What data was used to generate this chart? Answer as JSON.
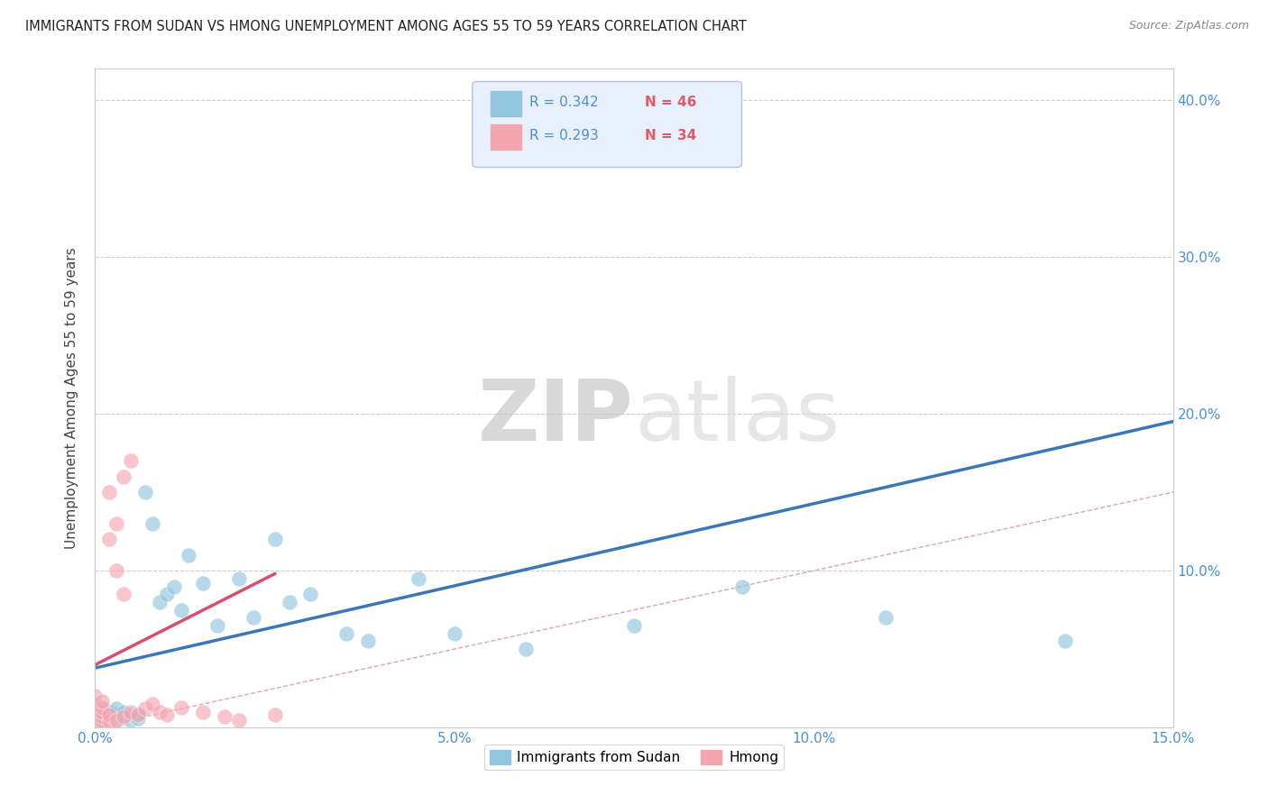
{
  "title": "IMMIGRANTS FROM SUDAN VS HMONG UNEMPLOYMENT AMONG AGES 55 TO 59 YEARS CORRELATION CHART",
  "source": "Source: ZipAtlas.com",
  "ylabel": "Unemployment Among Ages 55 to 59 years",
  "xlim": [
    0.0,
    0.15
  ],
  "ylim": [
    0.0,
    0.42
  ],
  "xtick_vals": [
    0.0,
    0.025,
    0.05,
    0.075,
    0.1,
    0.125,
    0.15
  ],
  "xtick_labels": [
    "0.0%",
    "",
    "5.0%",
    "",
    "10.0%",
    "",
    "15.0%"
  ],
  "ytick_vals": [
    0.0,
    0.1,
    0.2,
    0.3,
    0.4
  ],
  "ytick_labels_right": [
    "",
    "10.0%",
    "20.0%",
    "30.0%",
    "40.0%"
  ],
  "sudan_color": "#92c5de",
  "hmong_color": "#f4a6b0",
  "sudan_line_color": "#3a78b5",
  "hmong_line_color": "#d64f6e",
  "diag_color": "#d4a0a8",
  "watermark_color": "#e0e0e0",
  "background_color": "#ffffff",
  "grid_color": "#cccccc",
  "title_color": "#222222",
  "axis_label_color": "#444444",
  "tick_color": "#4a90d9",
  "legend_box_color": "#e8f0fb",
  "legend_r_color": "#4a90d9",
  "legend_n_color": "#e05a6a",
  "sudan_line_x": [
    0.0,
    0.15
  ],
  "sudan_line_y": [
    0.038,
    0.195
  ],
  "hmong_line_x": [
    0.0,
    0.025
  ],
  "hmong_line_y": [
    0.04,
    0.098
  ],
  "sudan_x": [
    0.0,
    0.0,
    0.0,
    0.001,
    0.001,
    0.001,
    0.001,
    0.001,
    0.002,
    0.002,
    0.002,
    0.002,
    0.003,
    0.003,
    0.003,
    0.003,
    0.004,
    0.004,
    0.004,
    0.005,
    0.005,
    0.006,
    0.006,
    0.007,
    0.008,
    0.009,
    0.01,
    0.011,
    0.012,
    0.013,
    0.015,
    0.017,
    0.02,
    0.022,
    0.025,
    0.027,
    0.03,
    0.035,
    0.038,
    0.045,
    0.05,
    0.06,
    0.075,
    0.09,
    0.11,
    0.135
  ],
  "sudan_y": [
    0.005,
    0.007,
    0.01,
    0.003,
    0.005,
    0.007,
    0.009,
    0.012,
    0.004,
    0.006,
    0.008,
    0.01,
    0.005,
    0.007,
    0.009,
    0.012,
    0.006,
    0.008,
    0.01,
    0.005,
    0.008,
    0.006,
    0.009,
    0.15,
    0.13,
    0.08,
    0.085,
    0.09,
    0.075,
    0.11,
    0.092,
    0.065,
    0.095,
    0.07,
    0.12,
    0.08,
    0.085,
    0.06,
    0.055,
    0.095,
    0.06,
    0.05,
    0.065,
    0.09,
    0.07,
    0.055
  ],
  "hmong_x": [
    0.0,
    0.0,
    0.0,
    0.0,
    0.0,
    0.0,
    0.001,
    0.001,
    0.001,
    0.001,
    0.001,
    0.001,
    0.002,
    0.002,
    0.002,
    0.002,
    0.003,
    0.003,
    0.003,
    0.004,
    0.004,
    0.004,
    0.005,
    0.005,
    0.006,
    0.007,
    0.008,
    0.009,
    0.01,
    0.012,
    0.015,
    0.018,
    0.02,
    0.025
  ],
  "hmong_y": [
    0.003,
    0.005,
    0.008,
    0.01,
    0.015,
    0.02,
    0.003,
    0.005,
    0.007,
    0.01,
    0.013,
    0.017,
    0.004,
    0.008,
    0.12,
    0.15,
    0.005,
    0.1,
    0.13,
    0.007,
    0.085,
    0.16,
    0.01,
    0.17,
    0.008,
    0.012,
    0.015,
    0.01,
    0.008,
    0.013,
    0.01,
    0.007,
    0.005,
    0.008
  ]
}
